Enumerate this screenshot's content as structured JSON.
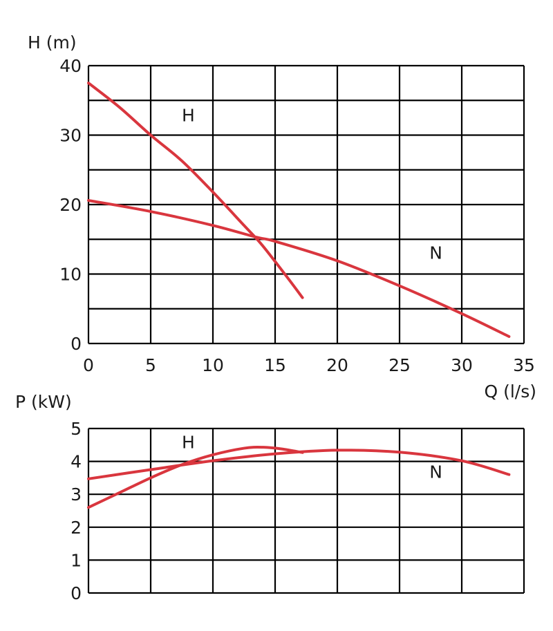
{
  "chart_data": [
    {
      "type": "line",
      "title": "",
      "ylabel": "H (m)",
      "xlabel": "Q (l/s)",
      "xlim": [
        0,
        35
      ],
      "ylim": [
        0,
        40
      ],
      "x_ticks": [
        "0",
        "5",
        "10",
        "15",
        "20",
        "25",
        "30",
        "35"
      ],
      "y_ticks": [
        "0",
        "10",
        "20",
        "30",
        "40"
      ],
      "grid": true,
      "legend": "inline labels",
      "series_color": "#d9363e",
      "series": [
        {
          "name": "H",
          "label_at": [
            7.5,
            32
          ],
          "points": [
            [
              0,
              37.5
            ],
            [
              2.5,
              34
            ],
            [
              5,
              30
            ],
            [
              7.5,
              26.3
            ],
            [
              10,
              21.8
            ],
            [
              12.5,
              17
            ],
            [
              13.8,
              14.5
            ],
            [
              15,
              11.8
            ],
            [
              16.2,
              9
            ],
            [
              17.2,
              6.6
            ]
          ]
        },
        {
          "name": "N",
          "label_at": [
            27.4,
            12.2
          ],
          "points": [
            [
              0,
              20.6
            ],
            [
              5,
              19
            ],
            [
              10,
              17
            ],
            [
              13.5,
              15.3
            ],
            [
              15,
              14.7
            ],
            [
              20,
              11.9
            ],
            [
              25,
              8.3
            ],
            [
              30,
              4.3
            ],
            [
              33.8,
              1
            ]
          ]
        }
      ]
    },
    {
      "type": "line",
      "title": "",
      "ylabel": "P (kW)",
      "xlabel": "",
      "xlim": [
        0,
        35
      ],
      "ylim": [
        0,
        5
      ],
      "y_ticks": [
        "0",
        "1",
        "2",
        "3",
        "4",
        "5"
      ],
      "grid": true,
      "legend": "inline labels",
      "series_color": "#d9363e",
      "series": [
        {
          "name": "H",
          "label_at": [
            7.5,
            4.4
          ],
          "points": [
            [
              0,
              2.6
            ],
            [
              2.5,
              3.05
            ],
            [
              5,
              3.5
            ],
            [
              7.5,
              3.9
            ],
            [
              10,
              4.2
            ],
            [
              12.5,
              4.4
            ],
            [
              14,
              4.43
            ],
            [
              15.5,
              4.38
            ],
            [
              17.2,
              4.27
            ]
          ]
        },
        {
          "name": "N",
          "label_at": [
            27.4,
            3.5
          ],
          "points": [
            [
              0,
              3.47
            ],
            [
              5,
              3.75
            ],
            [
              10,
              4.02
            ],
            [
              15,
              4.23
            ],
            [
              20,
              4.34
            ],
            [
              25,
              4.28
            ],
            [
              30,
              4.02
            ],
            [
              33.8,
              3.6
            ]
          ]
        }
      ]
    }
  ]
}
